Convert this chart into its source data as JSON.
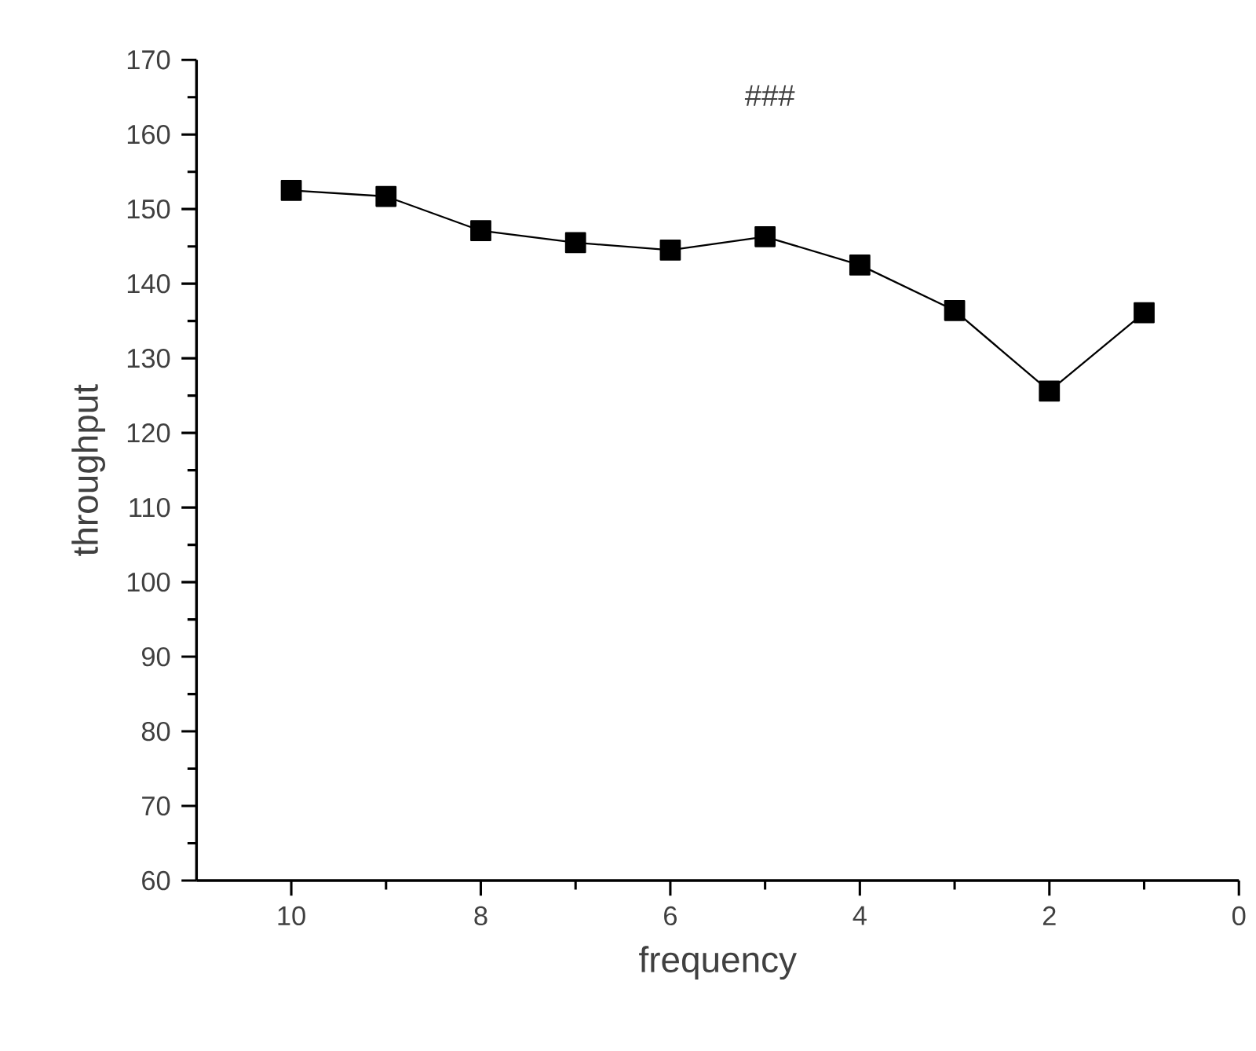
{
  "chart_data": {
    "type": "line",
    "title": "###",
    "xlabel": "frequency",
    "ylabel": "throughput",
    "x": [
      10,
      9,
      8,
      7,
      6,
      5,
      4,
      3,
      2,
      1
    ],
    "series": [
      {
        "color": "#000000",
        "values": [
          152.5,
          151.7,
          147.1,
          145.5,
          144.5,
          146.3,
          142.5,
          136.4,
          125.6,
          136.1
        ]
      }
    ],
    "xlim": [
      11,
      0
    ],
    "ylim": [
      60,
      170
    ],
    "xticks": [
      10,
      8,
      6,
      4,
      2,
      0
    ],
    "yticks": [
      60,
      70,
      80,
      90,
      100,
      110,
      120,
      130,
      140,
      150,
      160,
      170
    ],
    "marker": "square",
    "line_style": "solid",
    "grid": false
  }
}
